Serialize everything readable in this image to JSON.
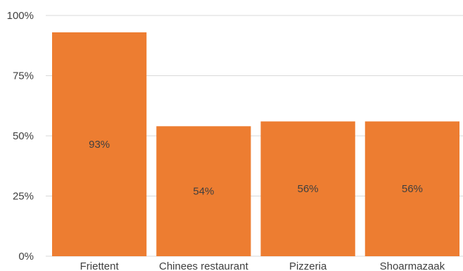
{
  "chart_data": {
    "type": "bar",
    "categories": [
      "Friettent",
      "Chinees restaurant",
      "Pizzeria",
      "Shoarmazaak"
    ],
    "values": [
      93,
      54,
      56,
      56
    ],
    "data_labels": [
      "93%",
      "54%",
      "56%",
      "56%"
    ],
    "title": "",
    "xlabel": "",
    "ylabel": "",
    "ylim": [
      0,
      100
    ],
    "yticks": [
      0,
      25,
      50,
      75,
      100
    ],
    "ytick_labels": [
      "0%",
      "25%",
      "50%",
      "75%",
      "100%"
    ],
    "grid": true,
    "legend": "none",
    "bar_color": "#ED7D31",
    "grid_color": "#D9D9D9",
    "text_color": "#3F3F3F"
  }
}
